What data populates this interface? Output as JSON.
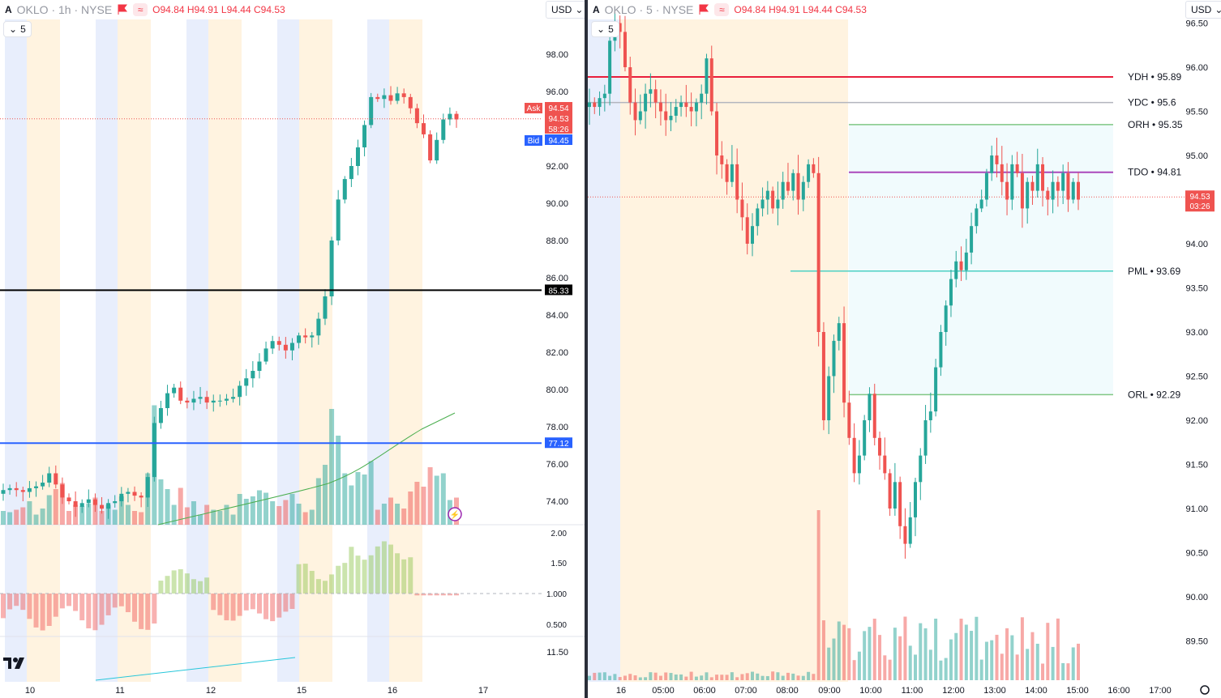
{
  "left": {
    "symbol": "OKLO",
    "interval": "1h",
    "exchange": "NYSE",
    "title": "OKLO · 1h · NYSE",
    "ohlc": {
      "o": "94.84",
      "h": "94.91",
      "l": "94.44",
      "c": "94.53"
    },
    "interval_picker": "5",
    "currency": "USD",
    "ask_label": "Ask",
    "ask_value": "94.54",
    "last_value": "94.53",
    "countdown": "58:26",
    "bid_label": "Bid",
    "bid_value": "94.45",
    "hline_black": "85.33",
    "hline_blue": "77.12",
    "price_ticks": [
      "98.00",
      "96.00",
      "94.00",
      "92.00",
      "90.00",
      "88.00",
      "86.00",
      "84.00",
      "82.00",
      "80.00",
      "78.00",
      "76.00",
      "74.00"
    ],
    "indicator_ticks": [
      "2.00",
      "1.50",
      "1.000",
      "0.500"
    ],
    "lower_tick": "11.50",
    "date_ticks": [
      "10",
      "11",
      "12",
      "15",
      "16",
      "17"
    ],
    "colors": {
      "up": "#26a69a",
      "down": "#ef5350",
      "pre": "#fff3e0",
      "post": "#e8eefc",
      "hline_blue": "#2962ff",
      "hline_black": "#000000",
      "ma": "#4caf50",
      "teal_line": "#26c6da"
    }
  },
  "right": {
    "title": "OKLO · 5 · NYSE",
    "ohlc": {
      "o": "94.84",
      "h": "94.91",
      "l": "94.44",
      "c": "94.53"
    },
    "interval_picker": "5",
    "currency": "USD",
    "last_value": "94.53",
    "countdown": "03:26",
    "levels": [
      {
        "label": "YDH • 95.89",
        "value": 95.89,
        "color": "#e91e3c"
      },
      {
        "label": "YDC • 95.6",
        "value": 95.6,
        "color": "#b2b5be"
      },
      {
        "label": "ORH • 95.35",
        "value": 95.35,
        "color": "#81c784"
      },
      {
        "label": "TDO • 94.81",
        "value": 94.81,
        "color": "#ab47bc"
      },
      {
        "label": "PML • 93.69",
        "value": 93.69,
        "color": "#4dd0c4"
      },
      {
        "label": "ORL • 92.29",
        "value": 92.29,
        "color": "#81c784"
      }
    ],
    "price_ticks": [
      "96.50",
      "96.00",
      "95.50",
      "95.00",
      "94.50",
      "94.00",
      "93.50",
      "93.00",
      "92.50",
      "92.00",
      "91.50",
      "91.00",
      "90.50",
      "90.00",
      "89.50"
    ],
    "time_ticks": [
      "16",
      "05:00",
      "06:00",
      "07:00",
      "08:00",
      "09:00",
      "10:00",
      "11:00",
      "12:00",
      "13:00",
      "14:00",
      "15:00",
      "16:00",
      "17:00"
    ]
  },
  "icons": [
    "tradingview-logo-icon",
    "flag-icon",
    "wave-icon",
    "chevron-down-icon",
    "lightning-icon",
    "settings-icon"
  ]
}
